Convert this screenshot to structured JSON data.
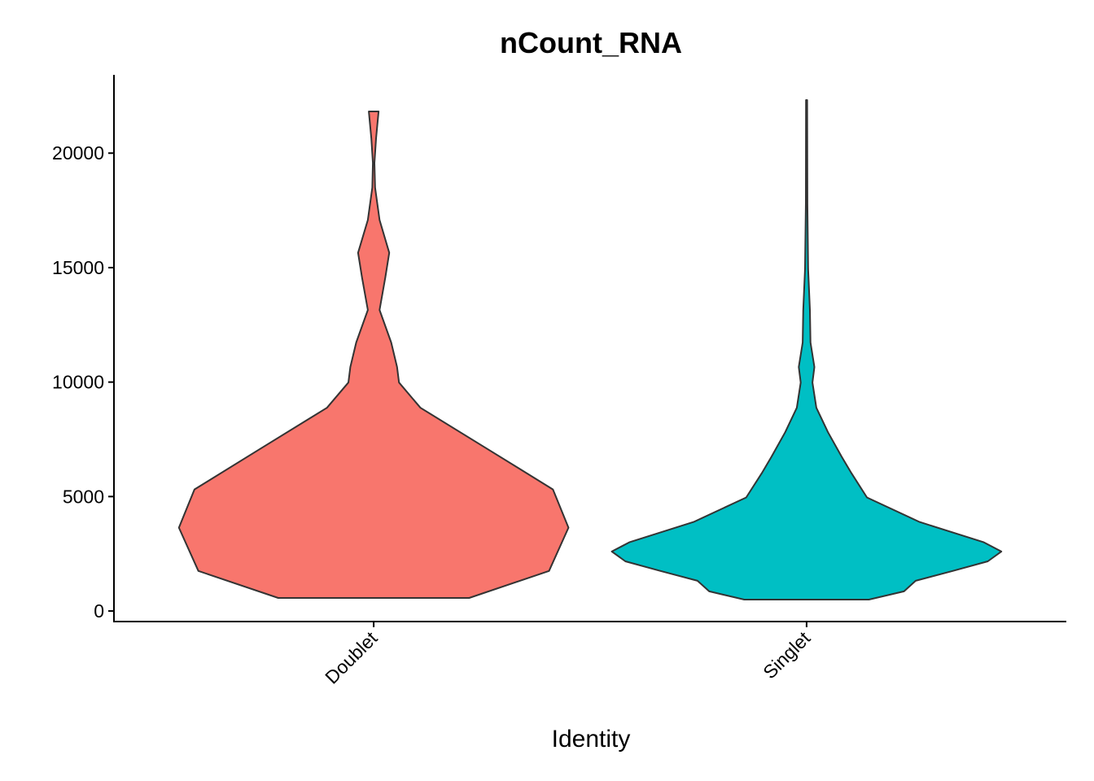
{
  "chart_data": {
    "type": "violin",
    "title": "nCount_RNA",
    "xlabel": "Identity",
    "categories": [
      "Doublet",
      "Singlet"
    ],
    "ylim": [
      -460,
      23420
    ],
    "yticks": [
      0,
      5000,
      10000,
      15000,
      20000
    ],
    "violins": [
      {
        "color": "#F8766D",
        "y": [
          570,
          1750,
          3640,
          5310,
          7100,
          8880,
          9980,
          10660,
          11730,
          13150,
          14580,
          15650,
          17080,
          18500,
          19570,
          20640,
          21820
        ],
        "width": [
          0.49,
          0.9,
          1.0,
          0.92,
          0.58,
          0.24,
          0.13,
          0.12,
          0.09,
          0.03,
          0.06,
          0.08,
          0.03,
          0.007,
          0.004,
          0.012,
          0.025
        ]
      },
      {
        "color": "#00BFC4",
        "y": [
          500,
          860,
          1320,
          1750,
          2170,
          2600,
          3000,
          3890,
          4960,
          6020,
          6740,
          7810,
          8880,
          9980,
          10660,
          11730,
          13150,
          14940,
          17790,
          22320
        ],
        "width": [
          0.32,
          0.5,
          0.56,
          0.75,
          0.93,
          1.0,
          0.91,
          0.58,
          0.31,
          0.23,
          0.18,
          0.11,
          0.05,
          0.03,
          0.04,
          0.02,
          0.017,
          0.008,
          0.004,
          0.003
        ]
      }
    ]
  }
}
